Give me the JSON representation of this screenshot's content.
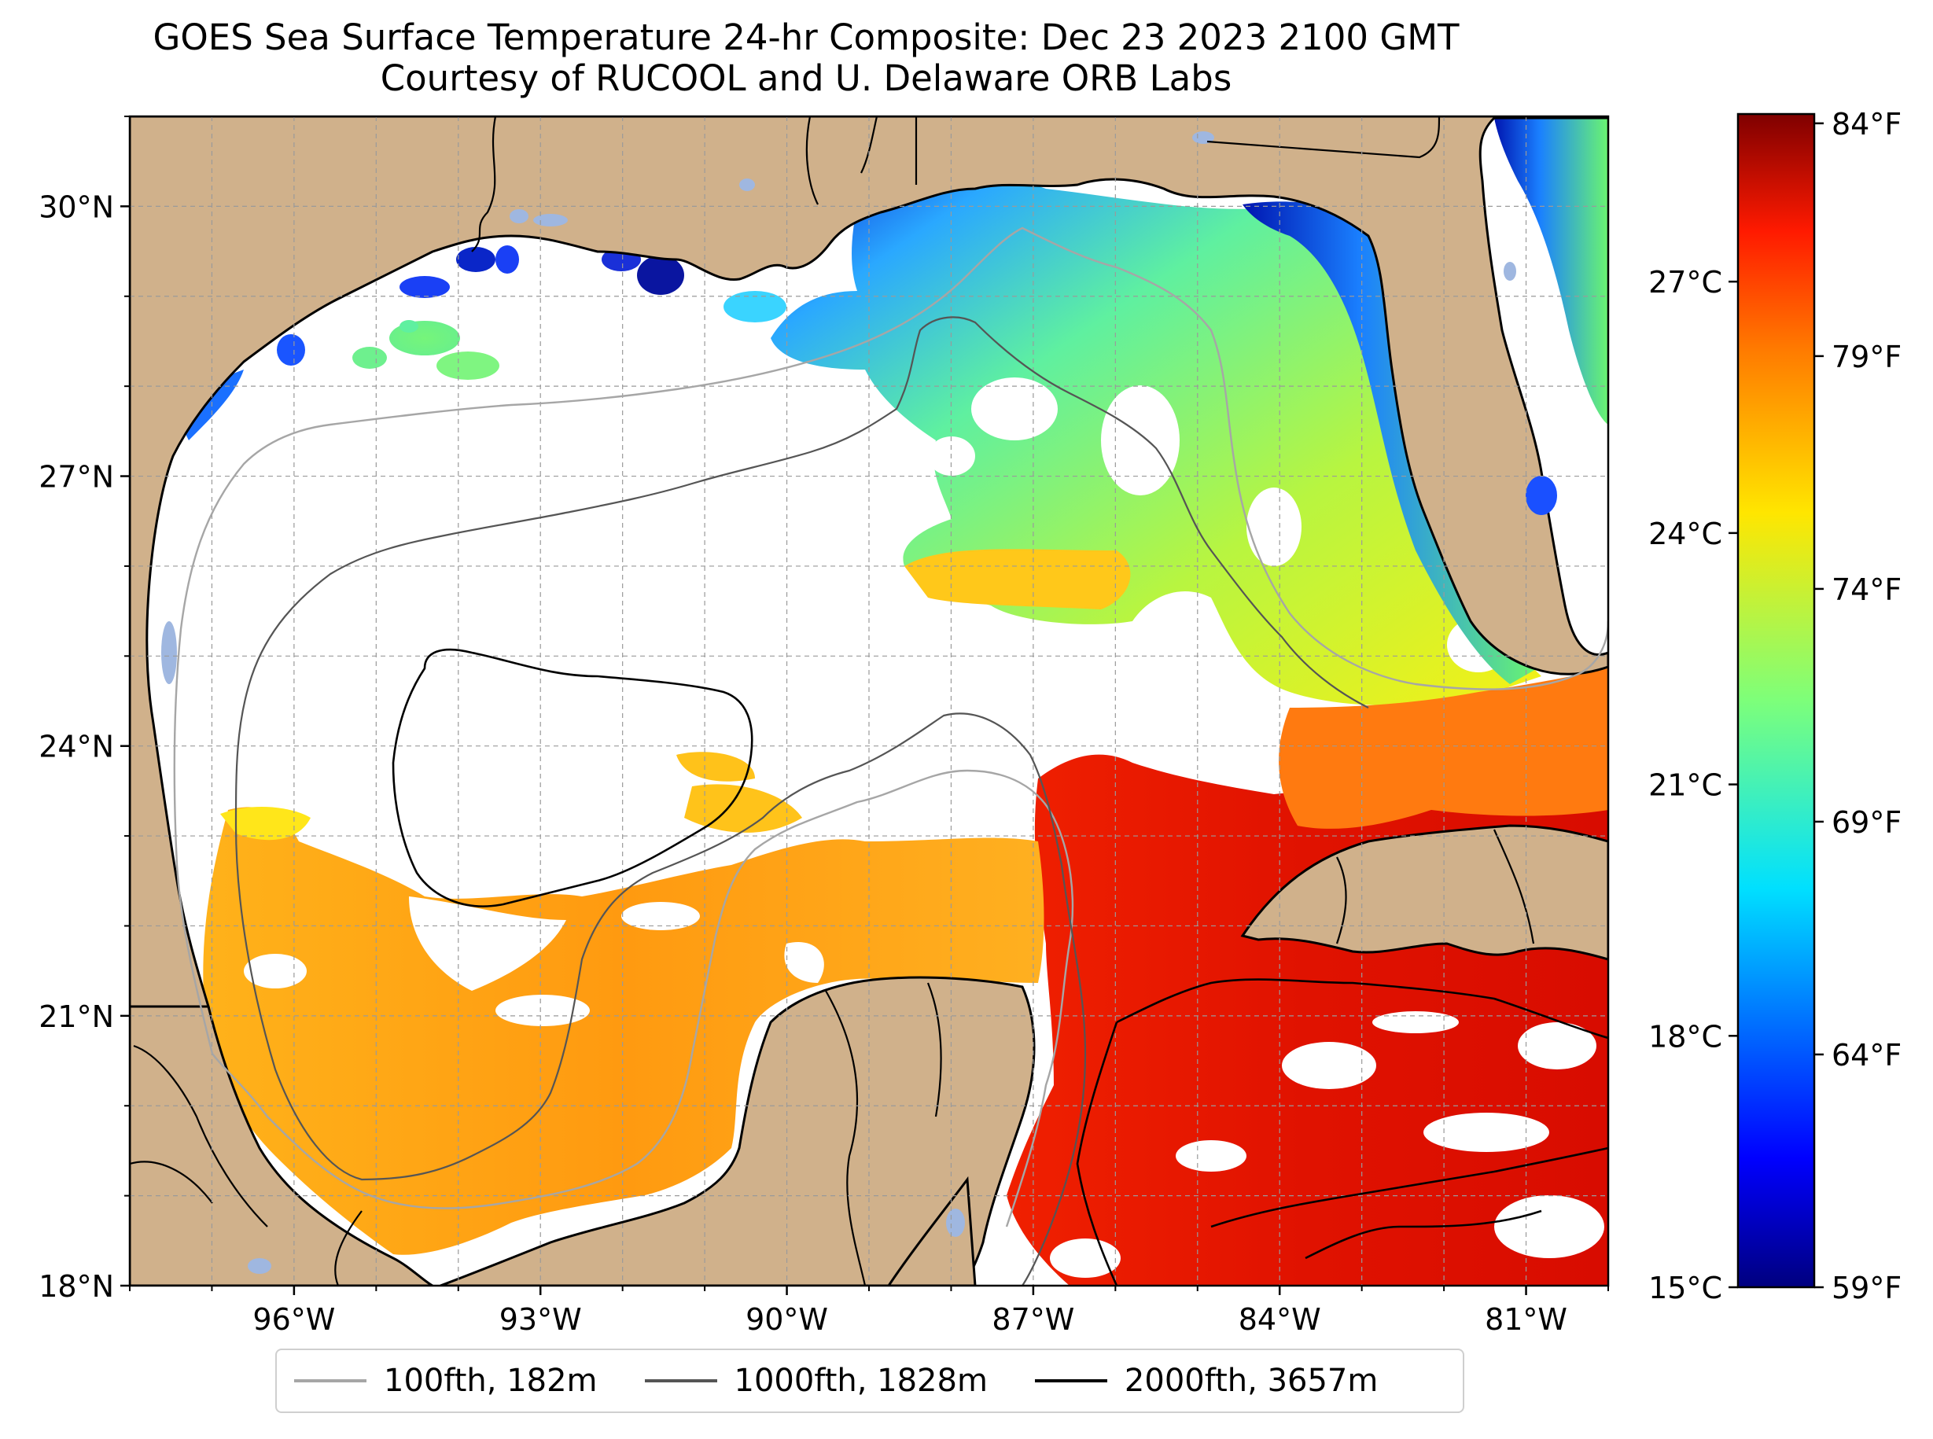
{
  "title": {
    "line1": "GOES Sea Surface Temperature 24-hr Composite: Dec 23 2023 2100 GMT",
    "line2": "Courtesy of RUCOOL and U. Delaware ORB Labs"
  },
  "map": {
    "lon_range": [
      -98,
      -80
    ],
    "lat_range": [
      18,
      31
    ],
    "lat_ticks": [
      "30°N",
      "27°N",
      "24°N",
      "21°N",
      "18°N"
    ],
    "lat_tick_values": [
      30,
      27,
      24,
      21,
      18
    ],
    "lon_ticks": [
      "96°W",
      "93°W",
      "90°W",
      "87°W",
      "84°W",
      "81°W"
    ],
    "lon_tick_values": [
      -96,
      -93,
      -90,
      -87,
      -84,
      -81
    ],
    "grid": "on",
    "land_color": "#d0b18b",
    "lake_color": "#9fb7e0",
    "no_data_color": "#ffffff"
  },
  "colorbar": {
    "colormap": "jet",
    "range_c": [
      15,
      29
    ],
    "celsius_ticks": [
      "27°C",
      "24°C",
      "21°C",
      "18°C",
      "15°C"
    ],
    "celsius_values": [
      27,
      24,
      21,
      18,
      15
    ],
    "fahrenheit_ticks": [
      "84°F",
      "79°F",
      "74°F",
      "69°F",
      "64°F",
      "59°F"
    ],
    "fahrenheit_values": [
      84,
      79,
      74,
      69,
      64,
      59
    ]
  },
  "legend": {
    "placement": "bottom-center",
    "items": [
      {
        "label": "100fth, 182m",
        "color": "#a6a6a6"
      },
      {
        "label": "1000fth, 1828m",
        "color": "#555555"
      },
      {
        "label": "2000fth, 3657m",
        "color": "#000000"
      }
    ]
  }
}
